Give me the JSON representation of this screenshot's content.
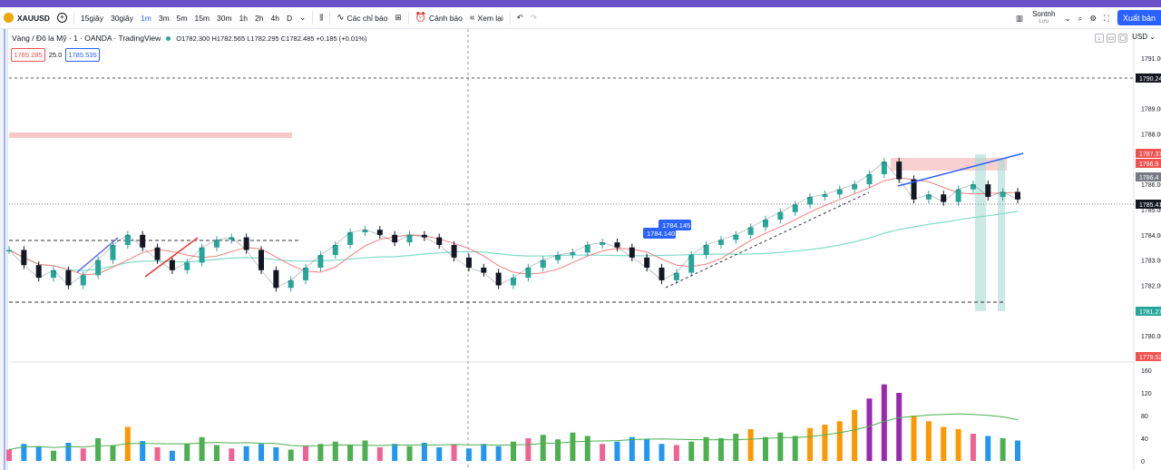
{
  "toolbar": {
    "symbol": "XAUUSD",
    "intervals": [
      "15giây",
      "30giây",
      "1m",
      "3m",
      "5m",
      "15m",
      "30m",
      "1h",
      "2h",
      "4h",
      "D"
    ],
    "active_interval": "1m",
    "indicators_label": "Các chỉ báo",
    "alerts_label": "Cảnh báo",
    "replay_label": "Xem lại",
    "user_name": "Sontnh",
    "user_sub": "Lưu",
    "publish_label": "Xuất bản"
  },
  "legend": {
    "title": "Vàng / Đô la Mỹ · 1 · OANDA · TradingView",
    "ohlc": "O1782.300 H1782.565 L1782.295 C1782.485 +0.185 (+0.01%)",
    "sell_price": "1785.285",
    "spread": "25.0",
    "buy_price": "1785.535"
  },
  "currency": "USD",
  "icons": [
    "add-symbol-icon",
    "chevron-down-icon",
    "candles-icon",
    "indicators-icon",
    "templates-icon",
    "alert-icon",
    "replay-icon",
    "undo-icon",
    "redo-icon",
    "layout-icon",
    "search-icon",
    "settings-icon",
    "fullscreen-icon",
    "camera-icon"
  ],
  "colors": {
    "up": "#26a69a",
    "down": "#131722",
    "ma_fast": "#f08080",
    "ma_slow": "#7fdcc8",
    "trend": "#2962ff",
    "zone": "#f8c8c8",
    "accent": "#2962ff"
  },
  "chart_data": {
    "type": "line",
    "y_axis_ticks": [
      "1791.00",
      "1790.24",
      "1789.00",
      "1788.00",
      "1787.37",
      "1786.9",
      "1786.4",
      "1786.00",
      "1785.41",
      "1785.00",
      "1784.00",
      "1783.00",
      "1782.00",
      "1781.27",
      "1781.00",
      "1780.00",
      "1779.52"
    ],
    "price_labels": {
      "current": "1785.41",
      "upper_dashed": "1790.24",
      "upper_zone": "1787.37",
      "line_a": "1786.9",
      "line_b": "1786.4",
      "lower": "1781.27",
      "bottom": "1779.52"
    },
    "volume_ticks": [
      "160",
      "120",
      "80",
      "40",
      "0"
    ],
    "annotations": [
      "1784.145",
      "1784.140"
    ],
    "ylim": [
      1779.0,
      1791.5
    ],
    "close": [
      1783.4,
      1782.8,
      1782.3,
      1782.6,
      1782.0,
      1782.4,
      1783.0,
      1783.6,
      1784.0,
      1783.5,
      1783.0,
      1782.6,
      1782.9,
      1783.5,
      1783.8,
      1783.9,
      1783.4,
      1782.6,
      1781.9,
      1782.2,
      1782.7,
      1783.2,
      1783.6,
      1784.1,
      1784.2,
      1784.0,
      1783.7,
      1784.0,
      1783.9,
      1783.6,
      1783.1,
      1782.7,
      1782.5,
      1782.0,
      1782.3,
      1782.7,
      1783.0,
      1783.2,
      1783.3,
      1783.6,
      1783.7,
      1783.5,
      1783.1,
      1782.7,
      1782.2,
      1782.5,
      1783.2,
      1783.6,
      1783.8,
      1784.0,
      1784.3,
      1784.6,
      1784.9,
      1785.2,
      1785.5,
      1785.6,
      1785.8,
      1786.0,
      1786.4,
      1786.9,
      1786.2,
      1785.4,
      1785.6,
      1785.3,
      1785.8,
      1786.0,
      1785.5,
      1785.7,
      1785.4
    ],
    "volume": [
      20,
      30,
      26,
      18,
      32,
      22,
      40,
      28,
      60,
      35,
      24,
      18,
      30,
      42,
      28,
      22,
      26,
      30,
      24,
      20,
      26,
      30,
      34,
      28,
      36,
      24,
      30,
      26,
      32,
      24,
      28,
      22,
      30,
      26,
      34,
      40,
      46,
      38,
      50,
      44,
      30,
      34,
      42,
      38,
      30,
      28,
      34,
      42,
      40,
      48,
      56,
      42,
      50,
      44,
      58,
      64,
      70,
      90,
      110,
      135,
      120,
      80,
      70,
      60,
      56,
      48,
      44,
      40,
      36
    ]
  }
}
